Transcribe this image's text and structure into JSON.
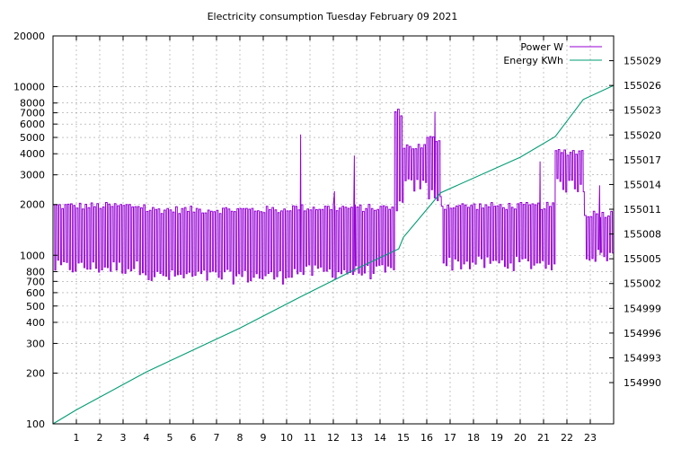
{
  "chart_data": {
    "type": "line",
    "title": "Electricity consumption Tuesday February 09 2021",
    "xlabel": "",
    "ylabel": "",
    "y2label": "",
    "xlim": [
      0,
      24
    ],
    "ylim": [
      100,
      20000
    ],
    "yscale": "log",
    "y2lim": [
      154985,
      155032
    ],
    "grid": true,
    "legend_position": "top-right",
    "x_ticks": [
      1,
      2,
      3,
      4,
      5,
      6,
      7,
      8,
      9,
      10,
      11,
      12,
      13,
      14,
      15,
      16,
      17,
      18,
      19,
      20,
      21,
      22,
      23
    ],
    "y_ticks": [
      {
        "value": 100,
        "label": "100"
      },
      {
        "value": 200,
        "label": "200"
      },
      {
        "value": 300,
        "label": "300"
      },
      {
        "value": 400,
        "label": "400"
      },
      {
        "value": 500,
        "label": "500"
      },
      {
        "value": 600,
        "label": "600"
      },
      {
        "value": 700,
        "label": "700"
      },
      {
        "value": 800,
        "label": "800"
      },
      {
        "value": 1000,
        "label": "1000"
      },
      {
        "value": 2000,
        "label": "2000"
      },
      {
        "value": 3000,
        "label": "3000"
      },
      {
        "value": 4000,
        "label": "4000"
      },
      {
        "value": 5000,
        "label": "5000"
      },
      {
        "value": 6000,
        "label": "6000"
      },
      {
        "value": 7000,
        "label": "7000"
      },
      {
        "value": 8000,
        "label": "8000"
      },
      {
        "value": 10000,
        "label": "10000"
      },
      {
        "value": 20000,
        "label": "20000"
      }
    ],
    "y2_ticks": [
      154990,
      154993,
      154996,
      154999,
      155002,
      155005,
      155008,
      155011,
      155014,
      155017,
      155020,
      155023,
      155026,
      155029
    ],
    "series": [
      {
        "name": "Power W",
        "color": "#9400d3",
        "axis": "y",
        "base_segments": [
          {
            "from": 0.0,
            "to": 4.0,
            "low": 850,
            "high": 2000
          },
          {
            "from": 4.0,
            "to": 10.0,
            "low": 750,
            "high": 1900
          },
          {
            "from": 10.0,
            "to": 14.6,
            "low": 800,
            "high": 1950
          },
          {
            "from": 14.6,
            "to": 15.0,
            "low": 2000,
            "high": 7200
          },
          {
            "from": 15.0,
            "to": 15.9,
            "low": 2600,
            "high": 4500
          },
          {
            "from": 15.9,
            "to": 16.6,
            "low": 2300,
            "high": 5000
          },
          {
            "from": 16.6,
            "to": 21.4,
            "low": 900,
            "high": 2000
          },
          {
            "from": 21.4,
            "to": 22.7,
            "low": 2600,
            "high": 4200
          },
          {
            "from": 22.7,
            "to": 24.0,
            "low": 1000,
            "high": 1800
          }
        ],
        "spikes": [
          {
            "x": 10.6,
            "value": 5200
          },
          {
            "x": 12.9,
            "value": 3900
          },
          {
            "x": 12.05,
            "value": 2400
          },
          {
            "x": 16.35,
            "value": 7100
          },
          {
            "x": 20.85,
            "value": 3600
          },
          {
            "x": 23.4,
            "value": 2600
          }
        ]
      },
      {
        "name": "Energy KWh",
        "color": "#009e73",
        "axis": "y2",
        "points": [
          [
            0.0,
            154985.0
          ],
          [
            1.0,
            154986.7
          ],
          [
            4.0,
            154991.3
          ],
          [
            8.0,
            154996.6
          ],
          [
            10.6,
            155000.4
          ],
          [
            13.0,
            155003.8
          ],
          [
            14.8,
            155006.2
          ],
          [
            15.0,
            155007.6
          ],
          [
            16.6,
            155013.0
          ],
          [
            20.0,
            155017.3
          ],
          [
            21.5,
            155019.8
          ],
          [
            22.7,
            155024.3
          ],
          [
            24.0,
            155026.0
          ]
        ]
      }
    ]
  }
}
